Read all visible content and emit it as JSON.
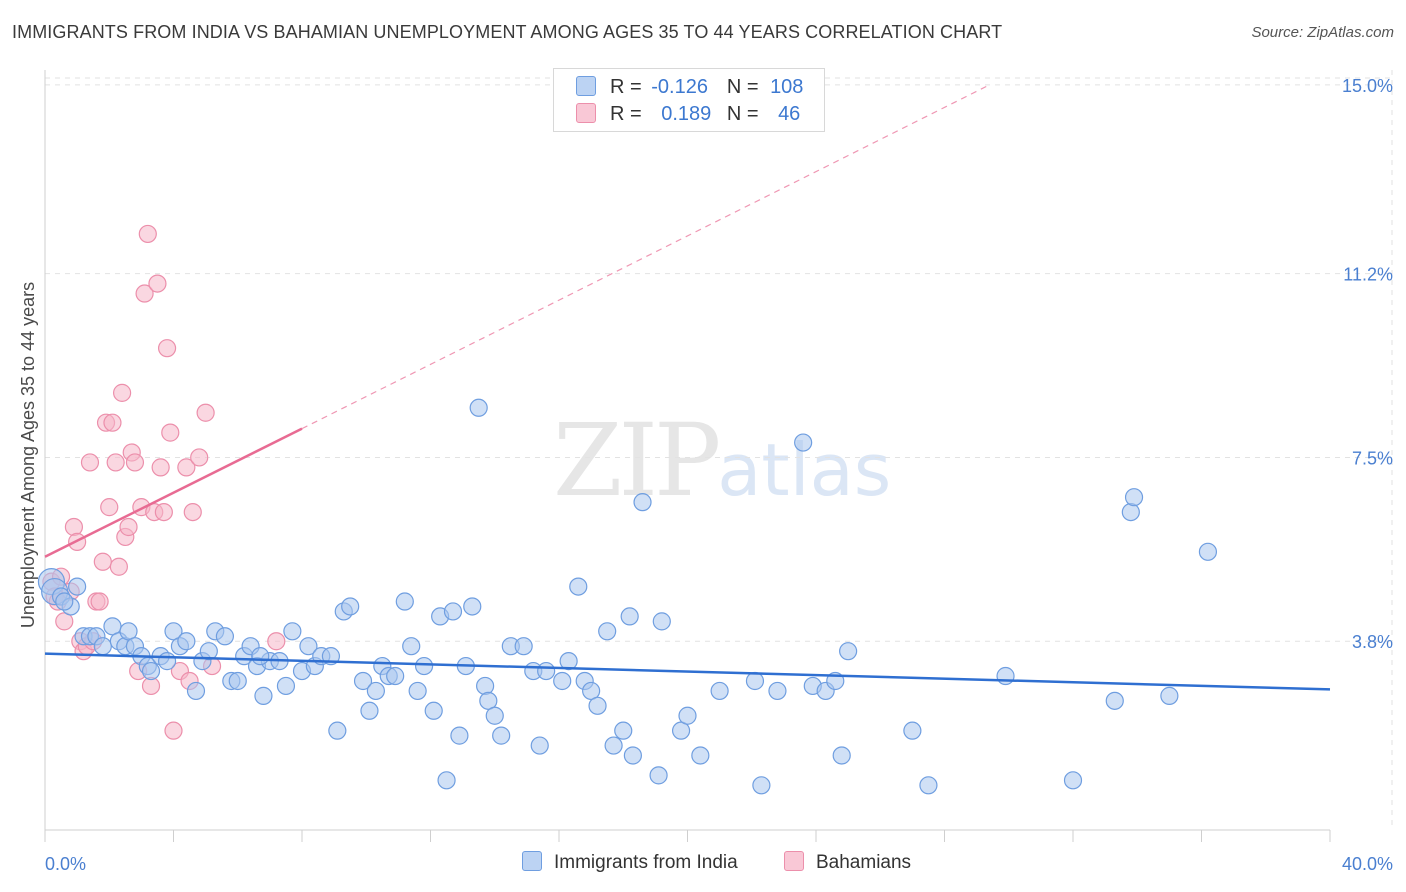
{
  "header": {
    "title": "IMMIGRANTS FROM INDIA VS BAHAMIAN UNEMPLOYMENT AMONG AGES 35 TO 44 YEARS CORRELATION CHART",
    "source": "Source: ZipAtlas.com"
  },
  "watermark": {
    "zip": "ZIP",
    "atlas": "atlas"
  },
  "legend": {
    "r_label": "R =",
    "n_label": "N =",
    "india": {
      "r": "-0.126",
      "n": "108"
    },
    "bahamas": {
      "r": "0.189",
      "n": "46"
    }
  },
  "bottom_legend": {
    "india": "Immigrants from India",
    "bahamas": "Bahamians"
  },
  "colors": {
    "india_fill": "#a9c6ef",
    "india_stroke": "#6f9ee0",
    "india_line": "#2f6fd1",
    "bahamas_fill": "#f6b7c9",
    "bahamas_stroke": "#ec8fab",
    "bahamas_line": "#e86b93",
    "tick_text": "#4a7fd0",
    "grid": "#e2e2e2"
  },
  "chart_data": {
    "type": "scatter",
    "title": "IMMIGRANTS FROM INDIA VS BAHAMIAN UNEMPLOYMENT AMONG AGES 35 TO 44 YEARS CORRELATION CHART",
    "xlabel": "",
    "ylabel": "Unemployment Among Ages 35 to 44 years",
    "xlim": [
      0,
      40
    ],
    "ylim": [
      0,
      15.3
    ],
    "x_tick_labels": [
      {
        "value": 0,
        "label": "0.0%"
      },
      {
        "value": 40,
        "label": "40.0%"
      }
    ],
    "y_tick_labels": [
      {
        "value": 3.8,
        "label": "3.8%"
      },
      {
        "value": 7.5,
        "label": "7.5%"
      },
      {
        "value": 11.2,
        "label": "11.2%"
      },
      {
        "value": 15.0,
        "label": "15.0%"
      }
    ],
    "series": [
      {
        "name": "Immigrants from India",
        "trend": {
          "x": [
            0,
            40
          ],
          "y": [
            3.55,
            2.83
          ]
        },
        "points": [
          [
            0.2,
            5.0
          ],
          [
            0.3,
            4.8
          ],
          [
            0.5,
            4.7
          ],
          [
            0.8,
            4.5
          ],
          [
            1.0,
            4.9
          ],
          [
            0.6,
            4.6
          ],
          [
            1.2,
            3.9
          ],
          [
            1.4,
            3.9
          ],
          [
            1.6,
            3.9
          ],
          [
            1.8,
            3.7
          ],
          [
            2.1,
            4.1
          ],
          [
            2.3,
            3.8
          ],
          [
            2.5,
            3.7
          ],
          [
            2.6,
            4.0
          ],
          [
            2.8,
            3.7
          ],
          [
            3.0,
            3.5
          ],
          [
            3.2,
            3.3
          ],
          [
            3.3,
            3.2
          ],
          [
            3.6,
            3.5
          ],
          [
            3.8,
            3.4
          ],
          [
            4.0,
            4.0
          ],
          [
            4.2,
            3.7
          ],
          [
            4.4,
            3.8
          ],
          [
            4.7,
            2.8
          ],
          [
            4.9,
            3.4
          ],
          [
            5.1,
            3.6
          ],
          [
            5.3,
            4.0
          ],
          [
            5.6,
            3.9
          ],
          [
            5.8,
            3.0
          ],
          [
            6.0,
            3.0
          ],
          [
            6.2,
            3.5
          ],
          [
            6.4,
            3.7
          ],
          [
            6.6,
            3.3
          ],
          [
            6.8,
            2.7
          ],
          [
            7.0,
            3.4
          ],
          [
            7.3,
            3.4
          ],
          [
            7.5,
            2.9
          ],
          [
            7.7,
            4.0
          ],
          [
            8.0,
            3.2
          ],
          [
            8.2,
            3.7
          ],
          [
            8.4,
            3.3
          ],
          [
            8.6,
            3.5
          ],
          [
            8.9,
            3.5
          ],
          [
            9.1,
            2.0
          ],
          [
            9.3,
            4.4
          ],
          [
            9.5,
            4.5
          ],
          [
            9.9,
            3.0
          ],
          [
            10.1,
            2.4
          ],
          [
            10.3,
            2.8
          ],
          [
            10.5,
            3.3
          ],
          [
            10.7,
            3.1
          ],
          [
            10.9,
            3.1
          ],
          [
            11.2,
            4.6
          ],
          [
            11.4,
            3.7
          ],
          [
            11.6,
            2.8
          ],
          [
            11.8,
            3.3
          ],
          [
            12.1,
            2.4
          ],
          [
            12.3,
            4.3
          ],
          [
            12.5,
            1.0
          ],
          [
            12.7,
            4.4
          ],
          [
            12.9,
            1.9
          ],
          [
            13.1,
            3.3
          ],
          [
            13.3,
            4.5
          ],
          [
            13.5,
            8.5
          ],
          [
            13.7,
            2.9
          ],
          [
            13.8,
            2.6
          ],
          [
            14.0,
            2.3
          ],
          [
            14.2,
            1.9
          ],
          [
            14.5,
            3.7
          ],
          [
            14.9,
            3.7
          ],
          [
            15.2,
            3.2
          ],
          [
            15.4,
            1.7
          ],
          [
            15.6,
            3.2
          ],
          [
            16.1,
            3.0
          ],
          [
            16.3,
            3.4
          ],
          [
            16.6,
            4.9
          ],
          [
            16.8,
            3.0
          ],
          [
            17.0,
            2.8
          ],
          [
            17.2,
            2.5
          ],
          [
            17.5,
            4.0
          ],
          [
            17.7,
            1.7
          ],
          [
            18.0,
            2.0
          ],
          [
            18.2,
            4.3
          ],
          [
            18.3,
            1.5
          ],
          [
            18.6,
            6.6
          ],
          [
            19.1,
            1.1
          ],
          [
            19.2,
            4.2
          ],
          [
            19.8,
            2.0
          ],
          [
            20.0,
            2.3
          ],
          [
            20.4,
            1.5
          ],
          [
            21.0,
            2.8
          ],
          [
            22.1,
            3.0
          ],
          [
            22.3,
            0.9
          ],
          [
            22.8,
            2.8
          ],
          [
            23.6,
            7.8
          ],
          [
            23.9,
            2.9
          ],
          [
            24.3,
            2.8
          ],
          [
            24.6,
            3.0
          ],
          [
            24.8,
            1.5
          ],
          [
            25.0,
            3.6
          ],
          [
            27.0,
            2.0
          ],
          [
            27.5,
            0.9
          ],
          [
            29.9,
            3.1
          ],
          [
            32.0,
            1.0
          ],
          [
            33.3,
            2.6
          ],
          [
            33.8,
            6.4
          ],
          [
            33.9,
            6.7
          ],
          [
            35.0,
            2.7
          ],
          [
            36.2,
            5.6
          ],
          [
            6.7,
            3.5
          ]
        ]
      },
      {
        "name": "Bahamians",
        "trend": {
          "x": [
            0,
            8
          ],
          "y": [
            5.5,
            8.08
          ]
        },
        "trend_extension": {
          "x": [
            8,
            29.4
          ],
          "y": [
            8.08,
            15.0
          ]
        },
        "points": [
          [
            0.2,
            5.0
          ],
          [
            0.3,
            4.7
          ],
          [
            0.4,
            4.6
          ],
          [
            0.5,
            5.1
          ],
          [
            0.6,
            4.2
          ],
          [
            0.8,
            4.8
          ],
          [
            0.9,
            6.1
          ],
          [
            1.0,
            5.8
          ],
          [
            1.1,
            3.8
          ],
          [
            1.2,
            3.6
          ],
          [
            1.3,
            3.7
          ],
          [
            1.4,
            7.4
          ],
          [
            1.5,
            3.8
          ],
          [
            1.6,
            4.6
          ],
          [
            1.7,
            4.6
          ],
          [
            1.8,
            5.4
          ],
          [
            1.9,
            8.2
          ],
          [
            2.0,
            6.5
          ],
          [
            2.1,
            8.2
          ],
          [
            2.2,
            7.4
          ],
          [
            2.3,
            5.3
          ],
          [
            2.4,
            8.8
          ],
          [
            2.5,
            5.9
          ],
          [
            2.6,
            6.1
          ],
          [
            2.7,
            7.6
          ],
          [
            2.8,
            7.4
          ],
          [
            2.9,
            3.2
          ],
          [
            3.0,
            6.5
          ],
          [
            3.1,
            10.8
          ],
          [
            3.2,
            12.0
          ],
          [
            3.3,
            2.9
          ],
          [
            3.4,
            6.4
          ],
          [
            3.5,
            11.0
          ],
          [
            3.6,
            7.3
          ],
          [
            3.7,
            6.4
          ],
          [
            3.8,
            9.7
          ],
          [
            3.9,
            8.0
          ],
          [
            4.0,
            2.0
          ],
          [
            4.2,
            3.2
          ],
          [
            4.4,
            7.3
          ],
          [
            4.6,
            6.4
          ],
          [
            4.8,
            7.5
          ],
          [
            5.0,
            8.4
          ],
          [
            5.2,
            3.3
          ],
          [
            7.2,
            3.8
          ],
          [
            4.5,
            3.0
          ]
        ]
      }
    ]
  },
  "axis": {
    "ylabel": "Unemployment Among Ages 35 to 44 years"
  }
}
